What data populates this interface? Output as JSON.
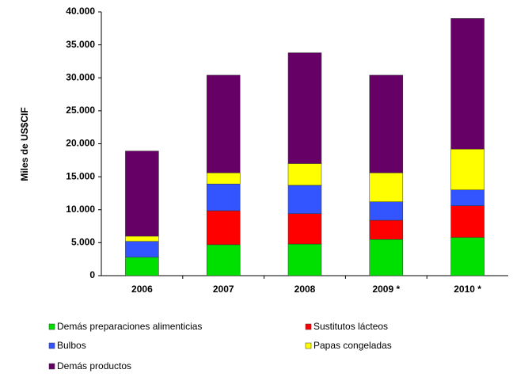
{
  "chart_data": {
    "type": "stacked_bar",
    "y_label": "Miles de US$CIF",
    "categories": [
      "2006",
      "2007",
      "2008",
      "2009 *",
      "2010 *"
    ],
    "series": [
      {
        "name": "Demás preparaciones alimenticias",
        "color": "#00e000",
        "values": [
          2800,
          4700,
          4800,
          5500,
          5800
        ]
      },
      {
        "name": "Sustitutos lácteos",
        "color": "#ff0000",
        "values": [
          0,
          5150,
          4600,
          2900,
          4800
        ]
      },
      {
        "name": "Bulbos",
        "color": "#3355ff",
        "values": [
          2400,
          4050,
          4300,
          2800,
          2400
        ]
      },
      {
        "name": "Papas congeladas",
        "color": "#ffff00",
        "values": [
          800,
          1700,
          3300,
          4400,
          6200
        ]
      },
      {
        "name": "Demás productos",
        "color": "#660066",
        "values": [
          12900,
          14800,
          16800,
          14800,
          19800
        ]
      }
    ],
    "ylim": [
      0,
      40000
    ],
    "yticks": [
      0,
      {
        "value": 5000,
        "label": "5.000"
      },
      {
        "value": 10000,
        "label": "10.000"
      },
      {
        "value": 15000,
        "label": "15.000"
      },
      {
        "value": 20000,
        "label": "20.000"
      },
      {
        "value": 25000,
        "label": "25.000"
      },
      {
        "value": 30000,
        "label": "30.000"
      },
      {
        "value": 35000,
        "label": "35.000"
      },
      {
        "value": 40000,
        "label": "40.000"
      }
    ],
    "grid": false
  }
}
